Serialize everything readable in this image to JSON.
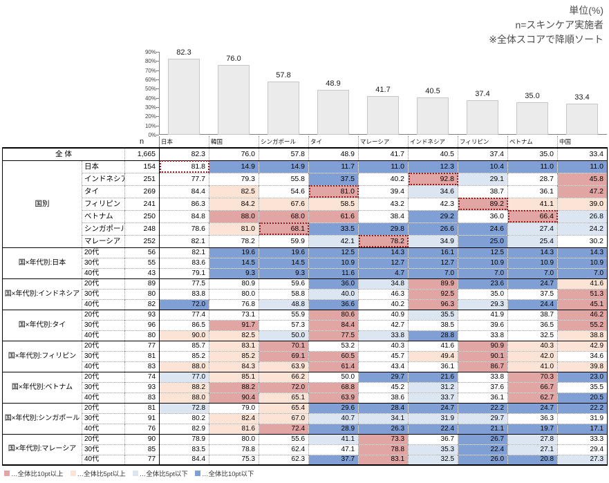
{
  "header": {
    "unit_note": "単位(%)",
    "n_note": "n=スキンケア実施者",
    "sort_note": "※全体スコアで降順ソート"
  },
  "chart_data": {
    "type": "bar",
    "title": "",
    "categories": [
      "日本",
      "韓国",
      "シンガポール",
      "タイ",
      "マレーシア",
      "インドネシア",
      "フィリピン",
      "ベトナム",
      "中国"
    ],
    "values": [
      82.3,
      76.0,
      57.8,
      48.9,
      41.7,
      40.5,
      37.4,
      35.0,
      33.4
    ],
    "axis": {
      "min": 0,
      "max": 90,
      "step": 10,
      "suffix": "%"
    },
    "grid": false,
    "bar_fill": "#ebebeb",
    "bar_line": "#c6c6c6"
  },
  "table": {
    "n_header": "n",
    "columns": [
      "日本",
      "韓国",
      "シンガポール",
      "タイ",
      "マレーシア",
      "インドネシア",
      "フィリピン",
      "ベトナム",
      "中国"
    ],
    "overall": {
      "label": "全 体",
      "n": "1,665",
      "values": [
        82.3,
        76.0,
        57.8,
        48.9,
        41.7,
        40.5,
        37.4,
        35.0,
        33.4
      ]
    },
    "groups": [
      {
        "label": "国別",
        "rows": [
          {
            "label": "日本",
            "n": "154",
            "values": [
              81.8,
              14.9,
              14.9,
              11.7,
              11.0,
              12.3,
              10.4,
              11.0,
              11.0
            ],
            "own": 0
          },
          {
            "label": "インドネシア",
            "n": "251",
            "values": [
              77.7,
              79.3,
              55.8,
              37.5,
              40.2,
              92.8,
              29.1,
              28.7,
              45.8
            ],
            "own": 5
          },
          {
            "label": "タイ",
            "n": "269",
            "values": [
              84.4,
              82.5,
              54.6,
              81.0,
              39.4,
              34.6,
              38.7,
              36.1,
              47.2
            ],
            "own": 3
          },
          {
            "label": "フィリピン",
            "n": "241",
            "values": [
              86.3,
              84.2,
              67.6,
              58.5,
              43.2,
              42.3,
              89.2,
              41.1,
              39.0
            ],
            "own": 6
          },
          {
            "label": "ベトナム",
            "n": "250",
            "values": [
              84.8,
              88.0,
              68.0,
              61.6,
              38.4,
              29.2,
              36.0,
              66.4,
              26.8
            ],
            "own": 7
          },
          {
            "label": "シンガポール",
            "n": "248",
            "values": [
              78.6,
              81.0,
              68.1,
              33.5,
              29.8,
              26.6,
              24.6,
              27.4,
              24.2
            ],
            "own": 2
          },
          {
            "label": "マレーシア",
            "n": "252",
            "values": [
              82.1,
              78.2,
              59.9,
              42.1,
              78.2,
              34.9,
              25.0,
              25.4,
              30.2
            ],
            "own": 4
          }
        ]
      },
      {
        "label": "国×年代別:日本",
        "rows": [
          {
            "label": "20代",
            "n": "56",
            "values": [
              82.1,
              19.6,
              19.6,
              12.5,
              14.3,
              16.1,
              12.5,
              14.3,
              14.3
            ]
          },
          {
            "label": "30代",
            "n": "55",
            "values": [
              83.6,
              14.5,
              14.5,
              10.9,
              12.7,
              12.7,
              10.9,
              10.9,
              10.9
            ]
          },
          {
            "label": "40代",
            "n": "43",
            "values": [
              79.1,
              9.3,
              9.3,
              11.6,
              4.7,
              7.0,
              7.0,
              7.0,
              7.0
            ]
          }
        ]
      },
      {
        "label": "国×年代別:インドネシア",
        "rows": [
          {
            "label": "20代",
            "n": "89",
            "values": [
              77.5,
              80.9,
              59.6,
              36.0,
              34.8,
              89.9,
              23.6,
              24.7,
              41.6
            ]
          },
          {
            "label": "30代",
            "n": "80",
            "values": [
              83.8,
              80.0,
              58.8,
              40.0,
              46.3,
              92.5,
              35.0,
              37.5,
              51.3
            ]
          },
          {
            "label": "40代",
            "n": "82",
            "values": [
              72.0,
              76.8,
              48.8,
              36.6,
              40.2,
              96.3,
              29.3,
              24.4,
              45.1
            ]
          }
        ]
      },
      {
        "label": "国×年代別:タイ",
        "rows": [
          {
            "label": "20代",
            "n": "93",
            "values": [
              77.4,
              73.1,
              55.9,
              80.6,
              40.9,
              35.5,
              41.9,
              38.7,
              46.2
            ]
          },
          {
            "label": "30代",
            "n": "96",
            "values": [
              86.5,
              91.7,
              57.3,
              84.4,
              42.7,
              38.5,
              39.6,
              36.5,
              55.2
            ]
          },
          {
            "label": "40代",
            "n": "80",
            "values": [
              90.0,
              82.5,
              50.0,
              77.5,
              33.8,
              28.8,
              33.8,
              32.5,
              38.8
            ]
          }
        ]
      },
      {
        "label": "国×年代別:フィリピン",
        "rows": [
          {
            "label": "20代",
            "n": "77",
            "values": [
              85.7,
              83.1,
              70.1,
              53.2,
              40.3,
              41.6,
              90.9,
              40.3,
              42.9
            ]
          },
          {
            "label": "30代",
            "n": "81",
            "values": [
              85.2,
              85.2,
              69.1,
              60.5,
              45.7,
              49.4,
              90.1,
              42.0,
              34.6
            ]
          },
          {
            "label": "40代",
            "n": "83",
            "values": [
              88.0,
              84.3,
              63.9,
              61.4,
              43.4,
              36.1,
              86.7,
              41.0,
              39.8
            ]
          }
        ]
      },
      {
        "label": "国×年代別:ベトナム",
        "rows": [
          {
            "label": "20代",
            "n": "74",
            "values": [
              77.0,
              85.1,
              66.2,
              50.0,
              29.7,
              21.6,
              33.8,
              70.3,
              23.0
            ]
          },
          {
            "label": "30代",
            "n": "93",
            "values": [
              88.2,
              88.2,
              72.0,
              68.8,
              45.2,
              31.2,
              37.6,
              66.7,
              35.5
            ]
          },
          {
            "label": "40代",
            "n": "83",
            "values": [
              88.0,
              90.4,
              65.1,
              63.9,
              38.6,
              33.7,
              36.1,
              62.7,
              20.5
            ]
          }
        ]
      },
      {
        "label": "国×年代別:シンガポール",
        "rows": [
          {
            "label": "20代",
            "n": "81",
            "values": [
              72.8,
              79.0,
              65.4,
              29.6,
              28.4,
              24.7,
              22.2,
              24.7,
              22.2
            ]
          },
          {
            "label": "30代",
            "n": "91",
            "values": [
              80.2,
              82.4,
              67.0,
              40.7,
              34.1,
              31.9,
              29.7,
              36.3,
              31.9
            ]
          },
          {
            "label": "40代",
            "n": "76",
            "values": [
              82.9,
              81.6,
              72.4,
              28.9,
              26.3,
              22.4,
              21.1,
              19.7,
              17.1
            ]
          }
        ]
      },
      {
        "label": "国×年代別:マレーシア",
        "rows": [
          {
            "label": "20代",
            "n": "90",
            "values": [
              78.9,
              80.0,
              55.6,
              41.1,
              73.3,
              36.7,
              26.7,
              27.8,
              33.3
            ]
          },
          {
            "label": "30代",
            "n": "85",
            "values": [
              83.5,
              78.8,
              62.4,
              47.1,
              78.8,
              35.3,
              22.4,
              27.1,
              29.4
            ]
          },
          {
            "label": "40代",
            "n": "77",
            "values": [
              84.4,
              75.3,
              62.3,
              37.7,
              83.1,
              32.5,
              26.0,
              20.8,
              27.3
            ]
          }
        ]
      }
    ],
    "color_rule": {
      "up10_pt": 10,
      "up5_pt": 5,
      "down5_pt": -5,
      "down10_pt": -10
    },
    "color_overrides": [
      {
        "group": 0,
        "row": 1,
        "col": 7,
        "class": ""
      }
    ]
  },
  "legend": {
    "items": [
      {
        "swatch": "up10",
        "label": "…全体比10pt以上"
      },
      {
        "swatch": "up5",
        "label": "…全体比5pt以上"
      },
      {
        "swatch": "down5",
        "label": "…全体比5pt以下"
      },
      {
        "swatch": "down10",
        "label": "…全体比10pt以下"
      }
    ]
  },
  "colors": {
    "up10": "#e1a6a4",
    "up5": "#fbe4d5",
    "down5": "#dce6f2",
    "down10": "#7f9fd5",
    "own_box": "#9b1c1c"
  }
}
